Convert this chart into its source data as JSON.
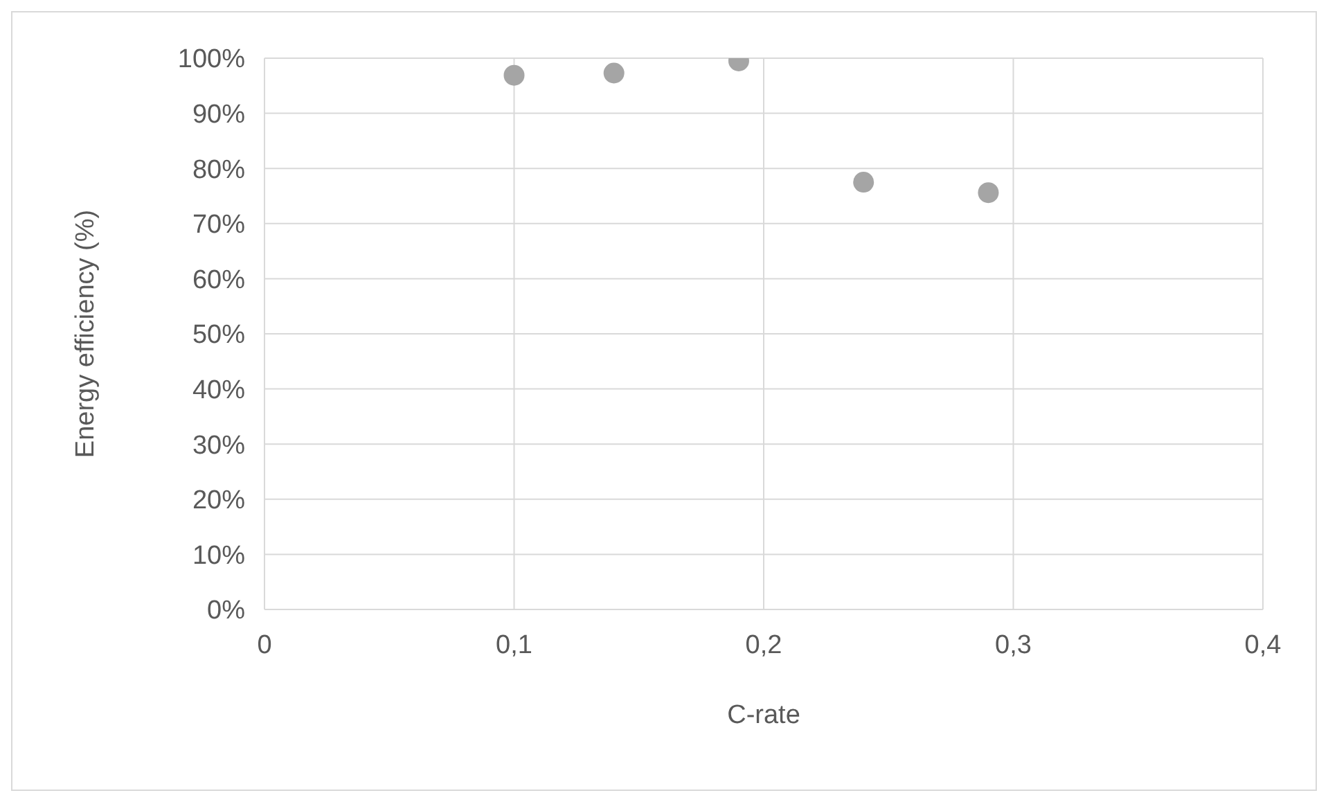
{
  "chart_data": {
    "type": "scatter",
    "xlabel": "C-rate",
    "ylabel": "Energy efficiency (%)",
    "x": [
      0.1,
      0.14,
      0.19,
      0.24,
      0.29
    ],
    "series": [
      {
        "color": "#a5a5a5",
        "values": [
          96.9,
          97.3,
          99.5,
          77.5,
          75.6
        ]
      }
    ],
    "xlim": [
      0,
      0.4
    ],
    "xticks": [
      {
        "value": 0,
        "label": "0"
      },
      {
        "value": 0.1,
        "label": "0,1"
      },
      {
        "value": 0.2,
        "label": "0,2"
      },
      {
        "value": 0.3,
        "label": "0,3"
      },
      {
        "value": 0.4,
        "label": "0,4"
      }
    ],
    "ylim": [
      0,
      100
    ],
    "yticks": [
      {
        "value": 0,
        "label": "0%"
      },
      {
        "value": 10,
        "label": "10%"
      },
      {
        "value": 20,
        "label": "20%"
      },
      {
        "value": 30,
        "label": "30%"
      },
      {
        "value": 40,
        "label": "40%"
      },
      {
        "value": 50,
        "label": "50%"
      },
      {
        "value": 60,
        "label": "60%"
      },
      {
        "value": 70,
        "label": "70%"
      },
      {
        "value": 80,
        "label": "80%"
      },
      {
        "value": 90,
        "label": "90%"
      },
      {
        "value": 100,
        "label": "100%"
      }
    ],
    "grid": true,
    "marker": "circle"
  }
}
